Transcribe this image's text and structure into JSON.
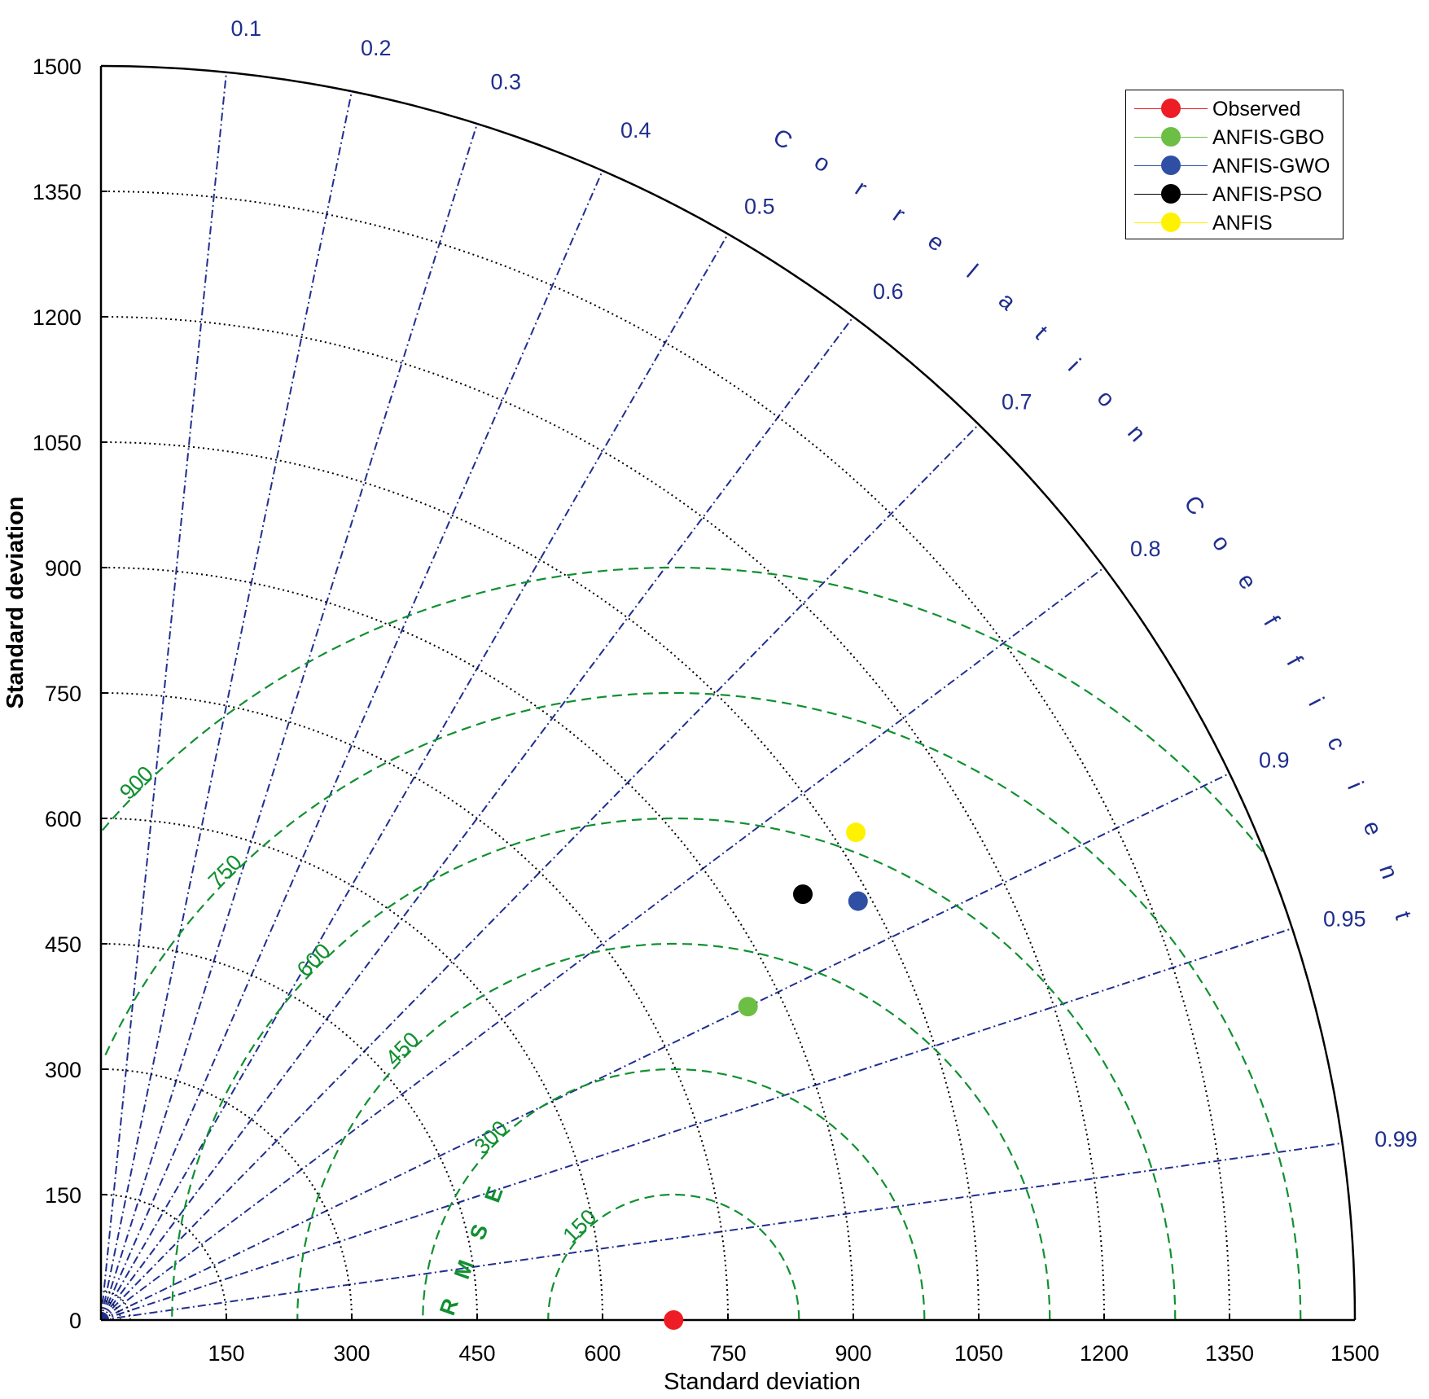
{
  "chart_data": {
    "type": "taylor-diagram",
    "xlabel": "Standard deviation",
    "ylabel": "Standard deviation",
    "std_ticks": [
      0,
      150,
      300,
      450,
      600,
      750,
      900,
      1050,
      1200,
      1350,
      1500
    ],
    "std_range": [
      0,
      1500
    ],
    "correlation_label": "Correlation Coefficient",
    "correlation_ticks": [
      {
        "value": 0.1,
        "label": "0.1"
      },
      {
        "value": 0.2,
        "label": "0.2"
      },
      {
        "value": 0.3,
        "label": "0.3"
      },
      {
        "value": 0.4,
        "label": "0.4"
      },
      {
        "value": 0.5,
        "label": "0.5"
      },
      {
        "value": 0.6,
        "label": "0.6"
      },
      {
        "value": 0.7,
        "label": "0.7"
      },
      {
        "value": 0.8,
        "label": "0.8"
      },
      {
        "value": 0.9,
        "label": "0.9"
      },
      {
        "value": 0.95,
        "label": "0.95"
      },
      {
        "value": 0.99,
        "label": "0.99"
      }
    ],
    "rmse_label": "RMSE",
    "rmse_ticks": [
      150,
      300,
      450,
      600,
      750,
      900
    ],
    "reference_std": 685,
    "grid": true,
    "legend_position": "top-right",
    "series": [
      {
        "name": "Observed",
        "color": "#ee1c24",
        "std": 685,
        "correlation": 1.0
      },
      {
        "name": "ANFIS-GBO",
        "color": "#6dbe45",
        "std": 860,
        "correlation": 0.9
      },
      {
        "name": "ANFIS-GWO",
        "color": "#2e4fa3",
        "std": 1035,
        "correlation": 0.875
      },
      {
        "name": "ANFIS-PSO",
        "color": "#000000",
        "std": 982,
        "correlation": 0.855
      },
      {
        "name": "ANFIS",
        "color": "#fff200",
        "std": 1075,
        "correlation": 0.84
      }
    ]
  },
  "colors": {
    "axis": "#000000",
    "std_grid": "#000000",
    "correlation": "#1f2e8f",
    "rmse": "#109030"
  }
}
